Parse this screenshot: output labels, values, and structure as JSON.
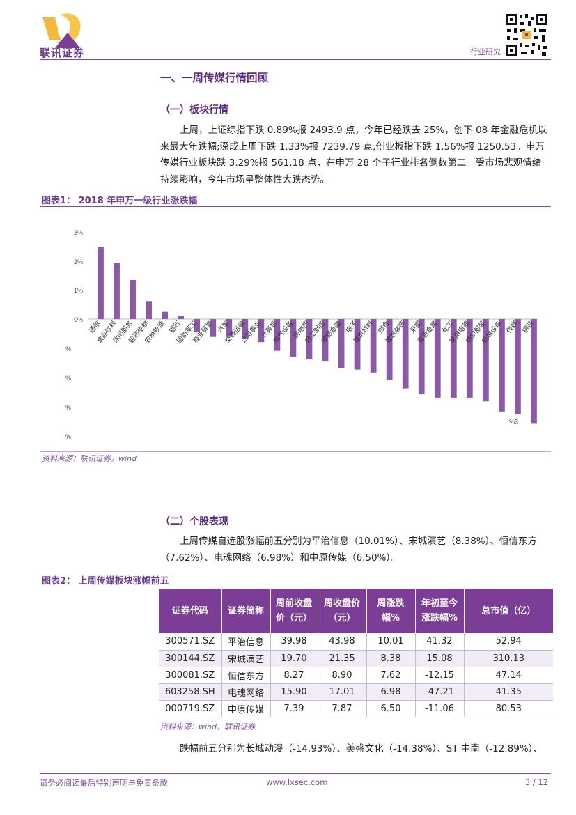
{
  "header": {
    "logo_text": "联讯证券",
    "right_label": "行业研究"
  },
  "section1": {
    "title": "一、一周传媒行情回顾",
    "sub_title": "（一）板块行情",
    "paragraph": "上周，上证综指下跌 0.89%报 2493.9 点，今年已经跌去 25%，创下 08 年金融危机以来最大年跌幅;深成上周下跌 1.33%报 7239.79 点,创业板指下跌 1.56%报 1250.53。申万传媒行业板块跌 3.29%报 561.18 点，在申万 28 个子行业排名倒数第二。受市场悲观情绪持续影响，今年市场呈整体性大跌态势。"
  },
  "figure1": {
    "title": "图表1：  2018 年申万一级行业涨跌幅",
    "source": "资料来源：联讯证券，wind"
  },
  "chart_data": {
    "type": "bar",
    "categories": [
      "通信",
      "食品饮料",
      "休闲服务",
      "医药生物",
      "农林牧渔",
      "银行",
      "国防军工",
      "商业贸易",
      "汽车",
      "交通运输",
      "公用事业",
      "计算机",
      "电气设备",
      "房地产",
      "轻工制造",
      "非银金融",
      "电子",
      "建筑材料",
      "综合",
      "建筑装饰",
      "采掘",
      "有色金属",
      "化工",
      "家用电器",
      "纺织服装",
      "机械设备",
      "传媒",
      "钢铁"
    ],
    "values": [
      2.5,
      1.95,
      1.35,
      0.62,
      0.25,
      0.12,
      -0.45,
      -0.62,
      -0.62,
      -0.7,
      -0.8,
      -1.1,
      -1.3,
      -1.4,
      -1.45,
      -1.7,
      -1.75,
      -1.85,
      -2.1,
      -2.4,
      -2.6,
      -2.72,
      -2.72,
      -2.72,
      -2.85,
      -3.2,
      -3.29,
      -3.6
    ],
    "y_ticks": [
      "3%",
      "2%",
      "1%",
      "0%",
      "%",
      "%",
      "%",
      "%"
    ],
    "data_label": "%3",
    "ylim": [
      -4,
      3
    ],
    "bar_color": "#8a5aa8"
  },
  "section2": {
    "sub_title": "（二）个股表现",
    "paragraph": "上周传媒自选股涨幅前五分别为平治信息（10.01%）、宋城演艺（8.38%）、恒信东方（7.62%）、电魂网络（6.98%）和中原传媒（6.50%）。"
  },
  "figure2": {
    "title": "图表2：  上周传媒板块涨幅前五",
    "source": "资料来源：wind，联讯证券",
    "headers": [
      "证券代码",
      "证券简称",
      "周前收盘价（元）",
      "周收盘价（元）",
      "周涨跌幅%",
      "年初至今涨跌幅%",
      "总市值（亿）"
    ],
    "rows": [
      [
        "300571.SZ",
        "平治信息",
        "39.98",
        "43.98",
        "10.01",
        "41.32",
        "52.94"
      ],
      [
        "300144.SZ",
        "宋城演艺",
        "19.70",
        "21.35",
        "8.38",
        "15.08",
        "310.13"
      ],
      [
        "300081.SZ",
        "恒信东方",
        "8.27",
        "8.90",
        "7.62",
        "-12.15",
        "47.14"
      ],
      [
        "603258.SH",
        "电魂网络",
        "15.90",
        "17.01",
        "6.98",
        "-47.21",
        "41.35"
      ],
      [
        "000719.SZ",
        "中原传媒",
        "7.39",
        "7.87",
        "6.50",
        "-11.06",
        "80.53"
      ]
    ]
  },
  "section3": {
    "paragraph": "跌幅前五分别为长城动漫（-14.93%）、美盛文化（-14.38%）、ST 中南（-12.89%）、"
  },
  "footer": {
    "disclaimer": "请务必阅读最后特别声明与免责条款",
    "website": "www.lxsec.com",
    "page": "3 / 12"
  }
}
